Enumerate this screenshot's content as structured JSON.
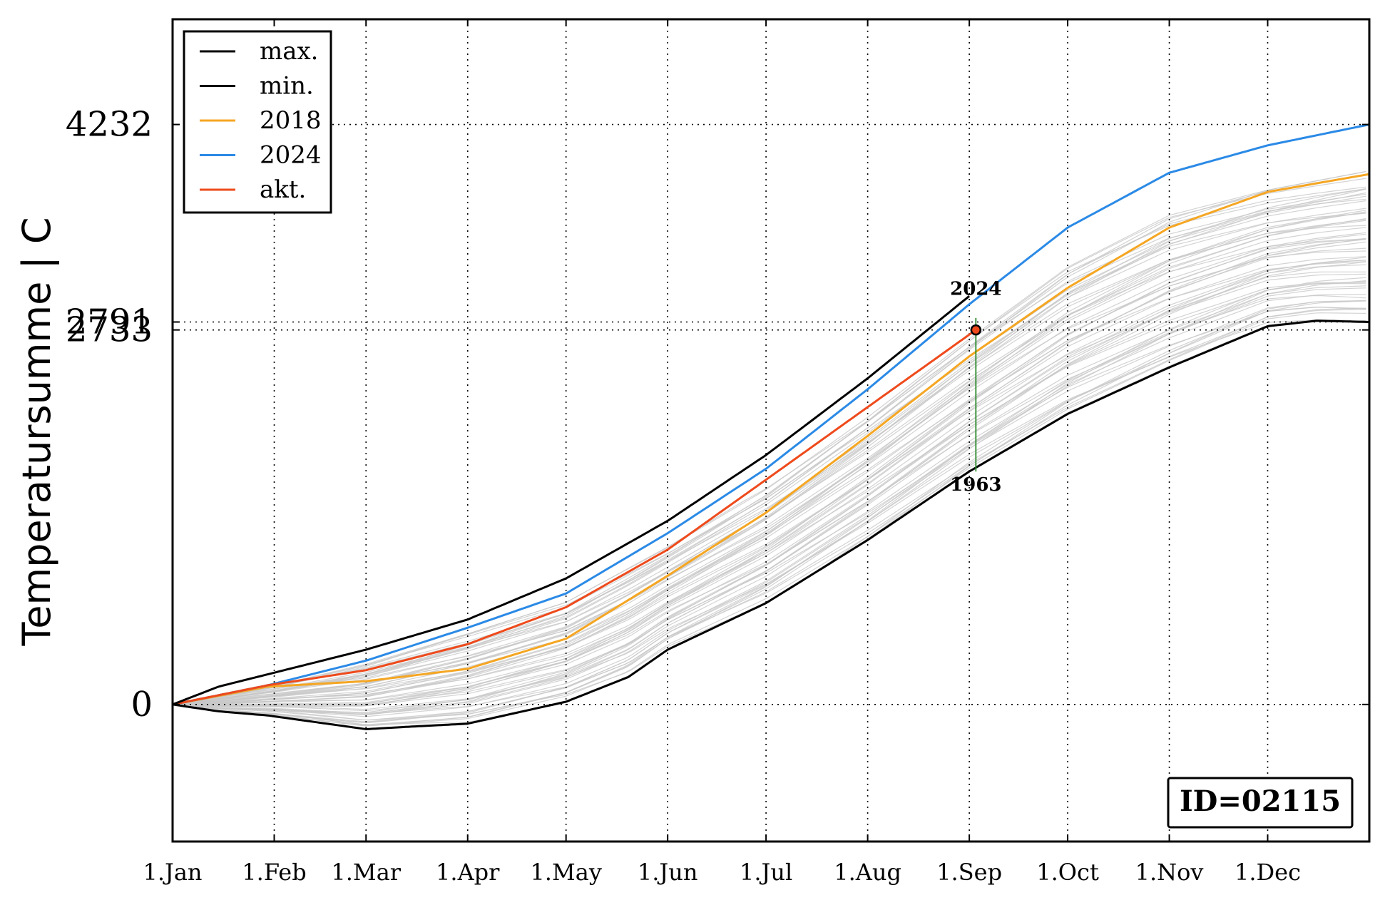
{
  "chart_data": {
    "type": "line",
    "ylabel": "Temperatursumme | C",
    "xlabel": "",
    "title": "",
    "x_tick_labels": [
      "1.Jan",
      "1.Feb",
      "1.Mar",
      "1.Apr",
      "1.May",
      "1.Jun",
      "1.Jul",
      "1.Aug",
      "1.Sep",
      "1.Oct",
      "1.Nov",
      "1.Dec"
    ],
    "x_tick_days": [
      1,
      32,
      60,
      91,
      121,
      152,
      182,
      213,
      244,
      274,
      305,
      335
    ],
    "xlim": [
      1,
      366
    ],
    "ylim": [
      -1000,
      5000
    ],
    "y_tick_values": [
      0,
      2733,
      2791,
      4232
    ],
    "y_tick_labels": [
      "0",
      "2733",
      "2791",
      "4232"
    ],
    "grid": "dotted",
    "legend_position": "upper-left",
    "legend": [
      {
        "label": "max.",
        "color": "#000000"
      },
      {
        "label": "min.",
        "color": "#000000"
      },
      {
        "label": "2018",
        "color": "#f5a623"
      },
      {
        "label": "2024",
        "color": "#2b8ae6"
      },
      {
        "label": "akt.",
        "color": "#ee4a1c"
      }
    ],
    "series": [
      {
        "name": "max.",
        "color": "#000000",
        "x": [
          1,
          15,
          30,
          60,
          91,
          121,
          152,
          182,
          213,
          244
        ],
        "y": [
          0,
          130,
          220,
          400,
          620,
          920,
          1340,
          1820,
          2380,
          2980
        ]
      },
      {
        "name": "min.",
        "color": "#000000",
        "x": [
          1,
          15,
          30,
          60,
          75,
          91,
          121,
          140,
          152,
          182,
          213,
          244,
          274,
          305,
          335,
          350,
          366
        ],
        "y": [
          0,
          -50,
          -80,
          -180,
          -160,
          -140,
          20,
          200,
          400,
          740,
          1200,
          1700,
          2120,
          2460,
          2760,
          2800,
          2791
        ]
      },
      {
        "name": "2018",
        "color": "#f5a623",
        "x": [
          1,
          30,
          60,
          91,
          121,
          152,
          182,
          213,
          244,
          274,
          305,
          335,
          366
        ],
        "y": [
          0,
          130,
          170,
          260,
          480,
          940,
          1400,
          1960,
          2540,
          3040,
          3480,
          3740,
          3870
        ]
      },
      {
        "name": "2024",
        "color": "#2b8ae6",
        "x": [
          1,
          30,
          60,
          91,
          121,
          152,
          182,
          213,
          244,
          274,
          305,
          335,
          366
        ],
        "y": [
          0,
          140,
          320,
          560,
          810,
          1250,
          1720,
          2300,
          2920,
          3480,
          3880,
          4080,
          4232
        ]
      },
      {
        "name": "akt.",
        "color": "#ee4a1c",
        "x": [
          1,
          30,
          60,
          91,
          121,
          152,
          182,
          213,
          246
        ],
        "y": [
          0,
          140,
          250,
          440,
          710,
          1130,
          1640,
          2170,
          2733
        ]
      }
    ],
    "background_years": {
      "count": 60,
      "color": "#c8c8c8"
    },
    "current_point": {
      "x": 246,
      "y": 2733
    },
    "range_line": {
      "x": 246,
      "y_top": 2820,
      "y_bottom": 1700,
      "color": "#2a8a2a"
    },
    "annotations": [
      {
        "text": "2024",
        "x": 246,
        "y": 2990
      },
      {
        "text": "1963",
        "x": 246,
        "y": 1560
      }
    ],
    "id_box": "ID=02115"
  }
}
